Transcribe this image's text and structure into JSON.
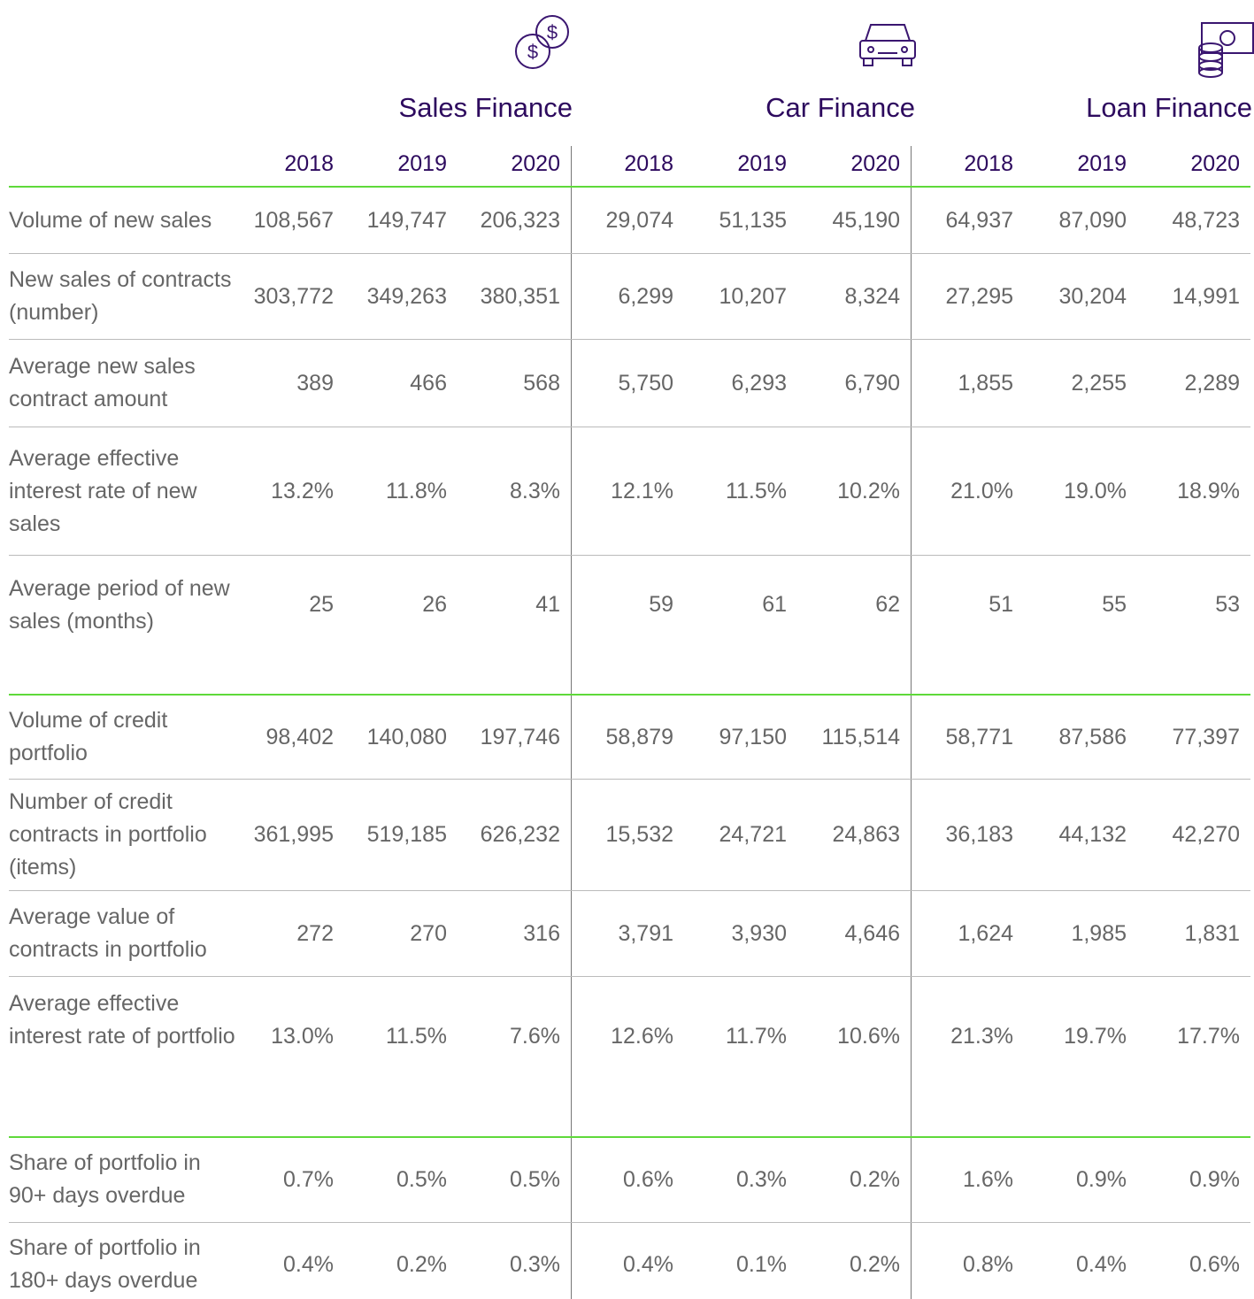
{
  "groups": [
    {
      "title": "Sales Finance",
      "years": [
        "2018",
        "2019",
        "2020"
      ]
    },
    {
      "title": "Car Finance",
      "years": [
        "2018",
        "2019",
        "2020"
      ]
    },
    {
      "title": "Loan Finance",
      "years": [
        "2018",
        "2019",
        "2020"
      ]
    }
  ],
  "rows": [
    {
      "label": "Volume of new sales",
      "values": [
        "108,567",
        "149,747",
        "206,323",
        "29,074",
        "51,135",
        "45,190",
        "64,937",
        "87,090",
        "48,723"
      ]
    },
    {
      "label": "New sales of contracts (number)",
      "values": [
        "303,772",
        "349,263",
        "380,351",
        "6,299",
        "10,207",
        "8,324",
        "27,295",
        "30,204",
        "14,991"
      ]
    },
    {
      "label": "Average new sales contract amount",
      "values": [
        "389",
        "466",
        "568",
        "5,750",
        "6,293",
        "6,790",
        "1,855",
        "2,255",
        "2,289"
      ]
    },
    {
      "label": "Average effective interest rate of new sales",
      "values": [
        "13.2%",
        "11.8%",
        "8.3%",
        "12.1%",
        "11.5%",
        "10.2%",
        "21.0%",
        "19.0%",
        "18.9%"
      ]
    },
    {
      "label": "Average period of new sales (months)",
      "values": [
        "25",
        "26",
        "41",
        "59",
        "61",
        "62",
        "51",
        "55",
        "53"
      ]
    },
    {
      "label": "Volume of credit portfolio",
      "values": [
        "98,402",
        "140,080",
        "197,746",
        "58,879",
        "97,150",
        "115,514",
        "58,771",
        "87,586",
        "77,397"
      ]
    },
    {
      "label": "Number of credit contracts in portfolio (items)",
      "values": [
        "361,995",
        "519,185",
        "626,232",
        "15,532",
        "24,721",
        "24,863",
        "36,183",
        "44,132",
        "42,270"
      ]
    },
    {
      "label": "Average value of contracts in portfolio",
      "values": [
        "272",
        "270",
        "316",
        "3,791",
        "3,930",
        "4,646",
        "1,624",
        "1,985",
        "1,831"
      ]
    },
    {
      "label": "Average effective interest rate of portfolio",
      "values": [
        "13.0%",
        "11.5%",
        "7.6%",
        "12.6%",
        "11.7%",
        "10.6%",
        "21.3%",
        "19.7%",
        "17.7%"
      ]
    },
    {
      "label": "Share of portfolio in 90+ days overdue",
      "values": [
        "0.7%",
        "0.5%",
        "0.5%",
        "0.6%",
        "0.3%",
        "0.2%",
        "1.6%",
        "0.9%",
        "0.9%"
      ]
    },
    {
      "label": "Share of portfolio in 180+ days overdue",
      "values": [
        "0.4%",
        "0.2%",
        "0.3%",
        "0.4%",
        "0.1%",
        "0.2%",
        "0.8%",
        "0.4%",
        "0.6%"
      ]
    }
  ]
}
